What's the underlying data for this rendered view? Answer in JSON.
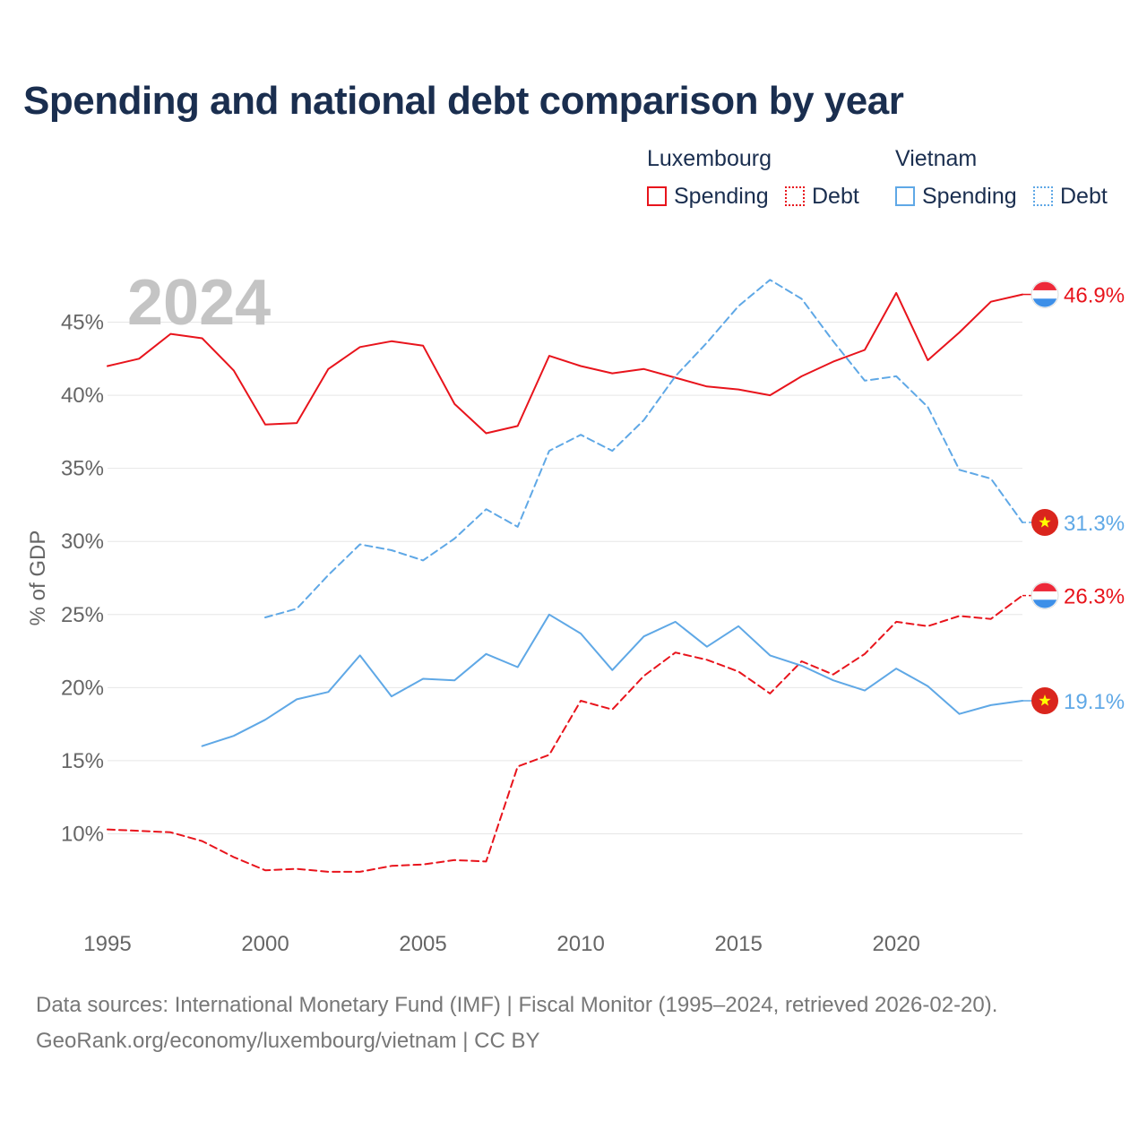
{
  "title": "Spending and national debt comparison by year",
  "legend": {
    "groups": [
      {
        "country": "Luxembourg",
        "color": "#e8141c",
        "items": [
          {
            "label": "Spending",
            "style": "solid"
          },
          {
            "label": "Debt",
            "style": "dotted"
          }
        ]
      },
      {
        "country": "Vietnam",
        "color": "#5fa8e6",
        "items": [
          {
            "label": "Spending",
            "style": "solid"
          },
          {
            "label": "Debt",
            "style": "dotted"
          }
        ]
      }
    ]
  },
  "year_watermark": "2024",
  "source": {
    "line1": "Data sources: International Monetary Fund (IMF) | Fiscal Monitor (1995–2024, retrieved 2026-02-20).",
    "line2": "GeoRank.org/economy/luxembourg/vietnam | CC BY"
  },
  "chart_data": {
    "type": "line",
    "title": "Spending and national debt comparison by year",
    "xlabel": "",
    "ylabel": "% of GDP",
    "xlim": [
      1995,
      2024
    ],
    "ylim": [
      5,
      50
    ],
    "x_ticks": [
      1995,
      2000,
      2005,
      2010,
      2015,
      2020
    ],
    "y_ticks": [
      10,
      15,
      20,
      25,
      30,
      35,
      40,
      45
    ],
    "y_tick_labels": [
      "10%",
      "15%",
      "20%",
      "25%",
      "30%",
      "35%",
      "40%",
      "45%"
    ],
    "grid": true,
    "series": [
      {
        "name": "Luxembourg Spending",
        "country": "Luxembourg",
        "flag": "luxembourg-flag",
        "color": "#e8141c",
        "dash": "solid",
        "end_label": "46.9%",
        "x": [
          1995,
          1996,
          1997,
          1998,
          1999,
          2000,
          2001,
          2002,
          2003,
          2004,
          2005,
          2006,
          2007,
          2008,
          2009,
          2010,
          2011,
          2012,
          2013,
          2014,
          2015,
          2016,
          2017,
          2018,
          2019,
          2020,
          2021,
          2022,
          2023,
          2024
        ],
        "values": [
          42.0,
          42.5,
          44.2,
          43.9,
          41.7,
          38.0,
          38.1,
          41.8,
          43.3,
          43.7,
          43.4,
          39.4,
          37.4,
          37.9,
          42.7,
          42.0,
          41.5,
          41.8,
          41.2,
          40.6,
          40.4,
          40.0,
          41.3,
          42.3,
          43.1,
          47.0,
          42.4,
          44.3,
          46.4,
          46.9
        ]
      },
      {
        "name": "Luxembourg Debt",
        "country": "Luxembourg",
        "flag": "luxembourg-flag",
        "color": "#e8141c",
        "dash": "dashed",
        "end_label": "26.3%",
        "x": [
          1995,
          1996,
          1997,
          1998,
          1999,
          2000,
          2001,
          2002,
          2003,
          2004,
          2005,
          2006,
          2007,
          2008,
          2009,
          2010,
          2011,
          2012,
          2013,
          2014,
          2015,
          2016,
          2017,
          2018,
          2019,
          2020,
          2021,
          2022,
          2023,
          2024
        ],
        "values": [
          10.3,
          10.2,
          10.1,
          9.5,
          8.4,
          7.5,
          7.6,
          7.4,
          7.4,
          7.8,
          7.9,
          8.2,
          8.1,
          14.6,
          15.4,
          19.1,
          18.5,
          20.8,
          22.4,
          21.9,
          21.1,
          19.6,
          21.8,
          20.9,
          22.3,
          24.5,
          24.2,
          24.9,
          24.7,
          26.3
        ]
      },
      {
        "name": "Vietnam Spending",
        "country": "Vietnam",
        "flag": "vietnam-flag",
        "color": "#5fa8e6",
        "dash": "solid",
        "end_label": "19.1%",
        "x": [
          1998,
          1999,
          2000,
          2001,
          2002,
          2003,
          2004,
          2005,
          2006,
          2007,
          2008,
          2009,
          2010,
          2011,
          2012,
          2013,
          2014,
          2015,
          2016,
          2017,
          2018,
          2019,
          2020,
          2021,
          2022,
          2023,
          2024
        ],
        "values": [
          16.0,
          16.7,
          17.8,
          19.2,
          19.7,
          22.2,
          19.4,
          20.6,
          20.5,
          22.3,
          21.4,
          25.0,
          23.7,
          21.2,
          23.5,
          24.5,
          22.8,
          24.2,
          22.2,
          21.5,
          20.5,
          19.8,
          21.3,
          20.1,
          18.2,
          18.8,
          19.1
        ]
      },
      {
        "name": "Vietnam Debt",
        "country": "Vietnam",
        "flag": "vietnam-flag",
        "color": "#5fa8e6",
        "dash": "dashed",
        "end_label": "31.3%",
        "x": [
          2000,
          2001,
          2002,
          2003,
          2004,
          2005,
          2006,
          2007,
          2008,
          2009,
          2010,
          2011,
          2012,
          2013,
          2014,
          2015,
          2016,
          2017,
          2018,
          2019,
          2020,
          2021,
          2022,
          2023,
          2024
        ],
        "values": [
          24.8,
          25.4,
          27.7,
          29.8,
          29.4,
          28.7,
          30.2,
          32.2,
          31.0,
          36.2,
          37.3,
          36.2,
          38.3,
          41.3,
          43.6,
          46.1,
          47.9,
          46.6,
          43.7,
          41.0,
          41.3,
          39.2,
          34.9,
          34.3,
          31.3
        ]
      }
    ]
  }
}
